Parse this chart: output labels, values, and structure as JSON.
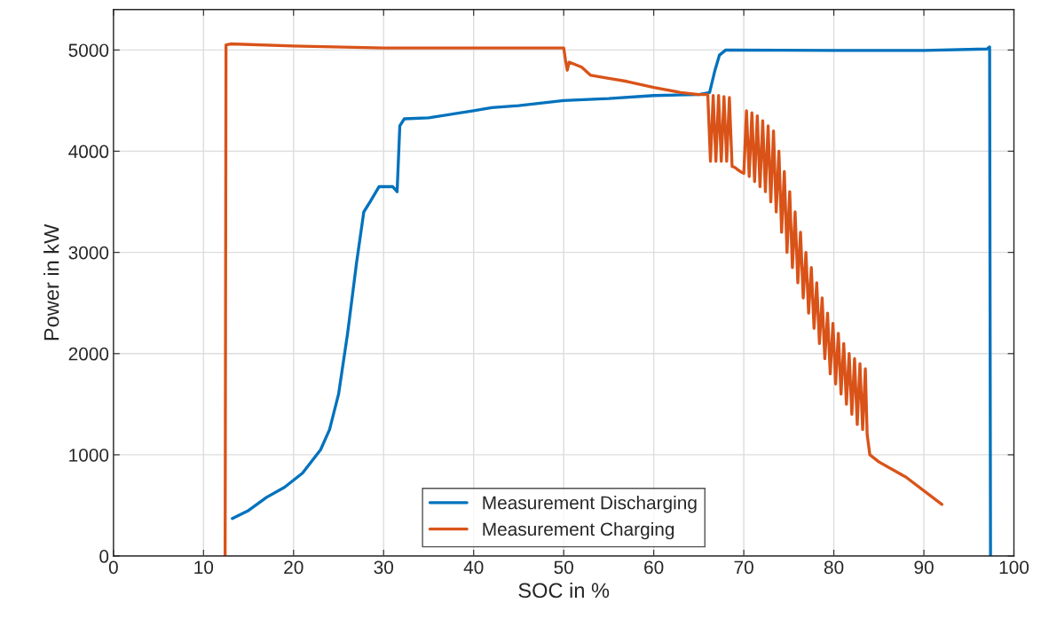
{
  "chart_data": {
    "type": "line",
    "xlabel": "SOC in %",
    "ylabel": "Power in kW",
    "xlim": [
      0,
      100
    ],
    "xticks": [
      0,
      10,
      20,
      30,
      40,
      50,
      60,
      70,
      80,
      90,
      100
    ],
    "ylim": [
      0,
      5400
    ],
    "yticks": [
      0,
      1000,
      2000,
      3000,
      4000,
      5000
    ],
    "grid": true,
    "legend": "bottom",
    "line_style": "solid",
    "series": [
      {
        "name": "Measurement Discharging",
        "color": "#0072bd",
        "x": [
          13.2,
          15,
          17,
          19,
          21,
          23,
          24,
          25,
          26,
          27,
          27.8,
          28.5,
          29.5,
          31,
          31.5,
          31.8,
          32.3,
          35,
          40,
          42,
          45,
          50,
          55,
          60,
          65,
          66.2,
          66.8,
          67.3,
          68,
          80,
          90,
          97,
          97.3,
          97.4
        ],
        "values": [
          370,
          450,
          580,
          680,
          820,
          1050,
          1250,
          1600,
          2200,
          2900,
          3400,
          3500,
          3650,
          3650,
          3600,
          4250,
          4320,
          4330,
          4400,
          4430,
          4450,
          4500,
          4520,
          4550,
          4560,
          4580,
          4800,
          4950,
          5000,
          4995,
          4995,
          5010,
          5030,
          0
        ]
      },
      {
        "name": "Measurement Charging",
        "color": "#d95319",
        "x": [
          12.4,
          12.5,
          13,
          20,
          30,
          40,
          50,
          50.2,
          50.4,
          50.6,
          52,
          53,
          55,
          57,
          60,
          63,
          65,
          66.0,
          66.3,
          66.6,
          66.9,
          67.2,
          67.5,
          67.8,
          68.1,
          68.4,
          68.7,
          69.0,
          69.3,
          69.6,
          70.0,
          70.3,
          70.6,
          70.9,
          71.2,
          71.5,
          71.8,
          72.1,
          72.4,
          72.7,
          73.0,
          73.3,
          73.6,
          73.9,
          74.2,
          74.5,
          74.8,
          75.1,
          75.4,
          75.7,
          76.0,
          76.3,
          76.6,
          76.9,
          77.2,
          77.5,
          77.8,
          78.1,
          78.4,
          78.7,
          79.0,
          79.3,
          79.6,
          79.9,
          80.2,
          80.5,
          80.8,
          81.1,
          81.4,
          81.7,
          82.0,
          82.3,
          82.6,
          82.9,
          83.2,
          83.5,
          83.7,
          84.0,
          85.0,
          88,
          92
        ],
        "values": [
          0,
          5050,
          5060,
          5040,
          5020,
          5020,
          5020,
          4900,
          4800,
          4880,
          4830,
          4750,
          4720,
          4690,
          4630,
          4580,
          4560,
          4560,
          3900,
          4550,
          3900,
          4550,
          3900,
          4540,
          3900,
          4530,
          3850,
          3840,
          3820,
          3800,
          3780,
          4400,
          3750,
          4380,
          3700,
          4350,
          3650,
          4300,
          3600,
          4250,
          3500,
          4200,
          3400,
          4000,
          3200,
          3800,
          3000,
          3600,
          2850,
          3400,
          2700,
          3200,
          2550,
          3000,
          2400,
          2850,
          2250,
          2700,
          2100,
          2550,
          1950,
          2400,
          1800,
          2300,
          1700,
          2200,
          1600,
          2100,
          1500,
          2000,
          1400,
          1950,
          1300,
          1900,
          1250,
          1850,
          1200,
          1000,
          930,
          780,
          510
        ]
      }
    ]
  }
}
